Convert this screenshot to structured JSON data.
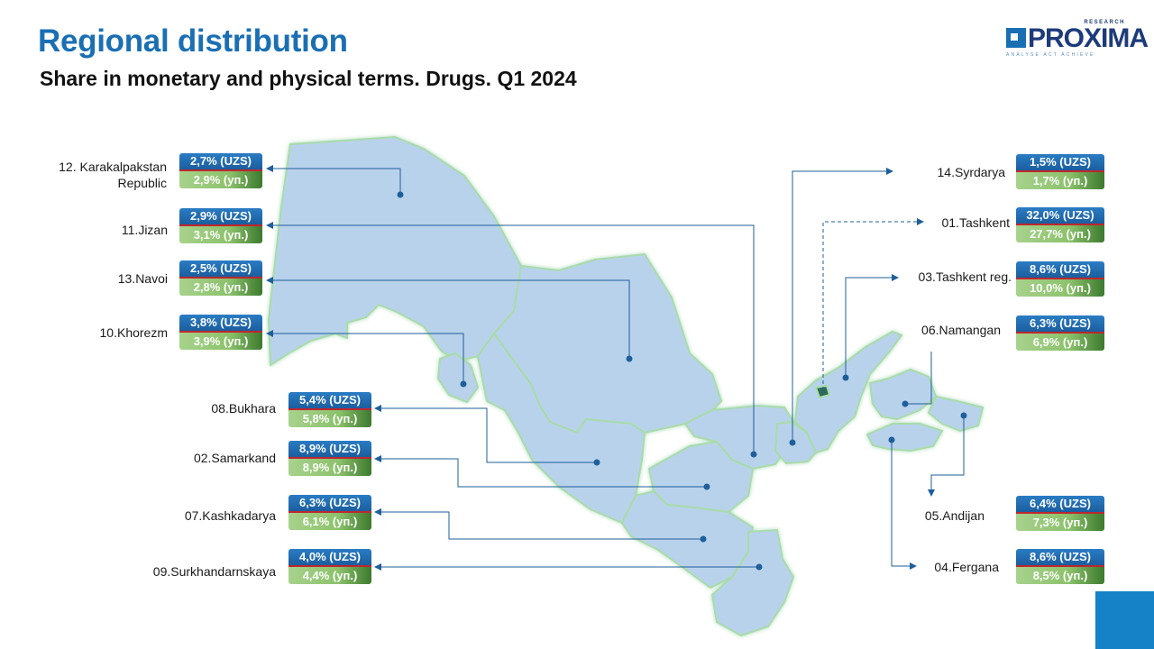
{
  "header": {
    "title": "Regional distribution",
    "subtitle": "Share in monetary and physical terms. Drugs. Q1 2024"
  },
  "logo": {
    "word": "PROXIMA",
    "research": "RESEARCH",
    "tagline": "ANALYSE  ACT  ACHIEVE",
    "brand_color": "#1a6fb4"
  },
  "colors": {
    "uzs_badge": "#1f6aae",
    "physical_badge": "#8cc26c",
    "separator": "#c0262d",
    "region_fill": "#b9d2ec",
    "region_border": "#9ad9a0",
    "leader_line": "#1f5f9a"
  },
  "regions": [
    {
      "id": "12",
      "name_line1": "12. Karakalpakstan",
      "name_line2": "Republic",
      "uzs": "2,7% (UZS)",
      "physical": "2,9% (уп.)"
    },
    {
      "id": "11",
      "name": "11.Jizan",
      "uzs": "2,9% (UZS)",
      "physical": "3,1% (уп.)"
    },
    {
      "id": "13",
      "name": "13.Navoi",
      "uzs": "2,5% (UZS)",
      "physical": "2,8% (уп.)"
    },
    {
      "id": "10",
      "name": "10.Khorezm",
      "uzs": "3,8% (UZS)",
      "physical": "3,9% (уп.)"
    },
    {
      "id": "08",
      "name": "08.Bukhara",
      "uzs": "5,4% (UZS)",
      "physical": "5,8% (уп.)"
    },
    {
      "id": "02",
      "name": "02.Samarkand",
      "uzs": "8,9% (UZS)",
      "physical": "8,9% (уп.)"
    },
    {
      "id": "07",
      "name": "07.Kashkadarya",
      "uzs": "6,3% (UZS)",
      "physical": "6,1% (уп.)"
    },
    {
      "id": "09",
      "name": "09.Surkhandarnskaya",
      "uzs": "4,0% (UZS)",
      "physical": "4,4% (уп.)"
    },
    {
      "id": "14",
      "name": "14.Syrdarya",
      "uzs": "1,5% (UZS)",
      "physical": "1,7% (уп.)"
    },
    {
      "id": "01",
      "name": "01.Tashkent",
      "uzs": "32,0% (UZS)",
      "physical": "27,7% (уп.)"
    },
    {
      "id": "03",
      "name": "03.Tashkent reg.",
      "uzs": "8,6% (UZS)",
      "physical": "10,0% (уп.)"
    },
    {
      "id": "06",
      "name": "06.Namangan",
      "uzs": "6,3% (UZS)",
      "physical": "6,9% (уп.)"
    },
    {
      "id": "05",
      "name": "05.Andijan",
      "uzs": "6,4% (UZS)",
      "physical": "7,3% (уп.)"
    },
    {
      "id": "04",
      "name": "04.Fergana",
      "uzs": "8,6% (UZS)",
      "physical": "8,5% (уп.)"
    }
  ]
}
